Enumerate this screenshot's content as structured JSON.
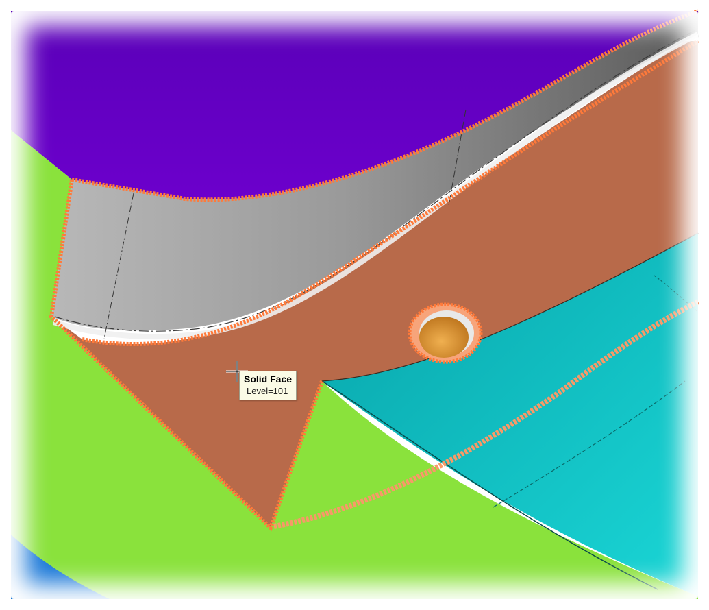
{
  "tooltip": {
    "title": "Solid Face",
    "detail": "Level=101"
  },
  "cursor": "crosshair-cursor-icon",
  "colors": {
    "background_surface_top": "#6a00c8",
    "background_surface_left": "#8ae23c",
    "background_surface_right": "#10b8bc",
    "selected_face": "#b86a4a",
    "selection_highlight": "#ff7a3a",
    "gray_flange": "#8a8a8a",
    "hole_inner": "#e0a040",
    "tooltip_bg": "#fbfbe6"
  }
}
